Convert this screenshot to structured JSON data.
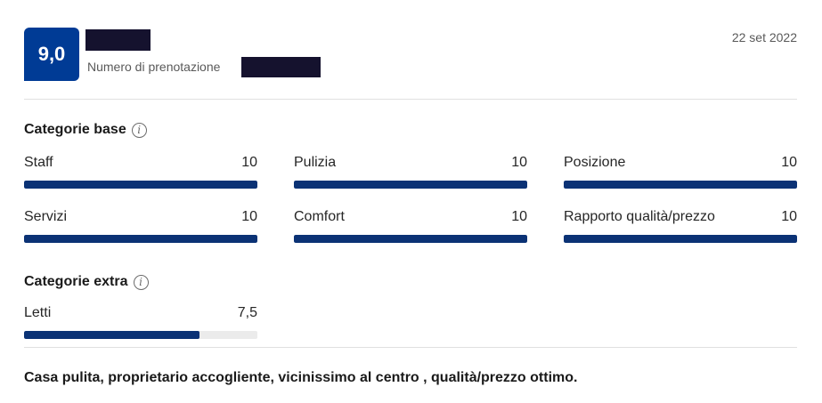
{
  "review": {
    "score": "9,0",
    "booking_label": "Numero di prenotazione",
    "date": "22 set 2022",
    "text": "Casa pulita, proprietario accogliente, vicinissimo al centro , qualità/prezzo ottimo."
  },
  "base": {
    "title": "Categorie base",
    "items": [
      {
        "label": "Staff",
        "value": "10",
        "fraction": 1.0
      },
      {
        "label": "Pulizia",
        "value": "10",
        "fraction": 1.0
      },
      {
        "label": "Posizione",
        "value": "10",
        "fraction": 1.0
      },
      {
        "label": "Servizi",
        "value": "10",
        "fraction": 1.0
      },
      {
        "label": "Comfort",
        "value": "10",
        "fraction": 1.0
      },
      {
        "label": "Rapporto qualità/prezzo",
        "value": "10",
        "fraction": 1.0
      }
    ]
  },
  "extra": {
    "title": "Categorie extra",
    "items": [
      {
        "label": "Letti",
        "value": "7,5",
        "fraction": 0.75
      }
    ]
  },
  "colors": {
    "badge": "#003b95",
    "bar_fill": "#0b3275",
    "bar_track": "#ebebeb"
  },
  "icons": {
    "info": "info-circle-icon"
  }
}
